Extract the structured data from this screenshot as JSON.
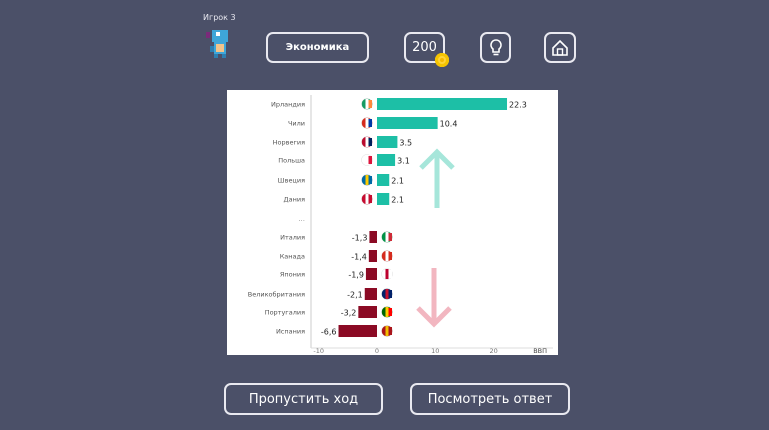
{
  "header": {
    "player_label": "Игрок 3",
    "topic_button": "Экономика",
    "score": "200",
    "icons": {
      "hint": "lightbulb-icon",
      "home": "home-icon",
      "coin": "coin-icon",
      "avatar": "pixel-dinosaur-avatar"
    }
  },
  "chart_data": {
    "type": "bar",
    "orientation": "horizontal",
    "xlabel": "ВВП",
    "xlim": [
      -10,
      28
    ],
    "xticks": [
      "-10",
      "0",
      "10",
      "20"
    ],
    "grid": false,
    "separator_label": "...",
    "categories": [
      "Ирландия",
      "Чили",
      "Норвегия",
      "Польша",
      "Швеция",
      "Дания",
      "Италия",
      "Канада",
      "Япония",
      "Великобритания",
      "Португалия",
      "Испания"
    ],
    "values": [
      22.3,
      10.4,
      3.5,
      3.1,
      2.1,
      2.1,
      -1.3,
      -1.4,
      -1.9,
      -2.1,
      -3.2,
      -6.6
    ],
    "value_labels": [
      "22.3",
      "10.4",
      "3.5",
      "3.1",
      "2.1",
      "2.1",
      "-1,3",
      "-1,4",
      "-1,9",
      "-2,1",
      "-3,2",
      "-6,6"
    ],
    "flags": [
      "ireland",
      "chile",
      "norway",
      "poland",
      "sweden",
      "denmark",
      "italy",
      "canada",
      "japan",
      "uk",
      "portugal",
      "spain"
    ],
    "colors": {
      "positive": "#1dbfa6",
      "negative": "#8b0a24",
      "up_arrow": "#a6e6da",
      "down_arrow": "#f2b6c0"
    }
  },
  "footer": {
    "skip_button": "Пропустить ход",
    "answer_button": "Посмотреть ответ"
  }
}
